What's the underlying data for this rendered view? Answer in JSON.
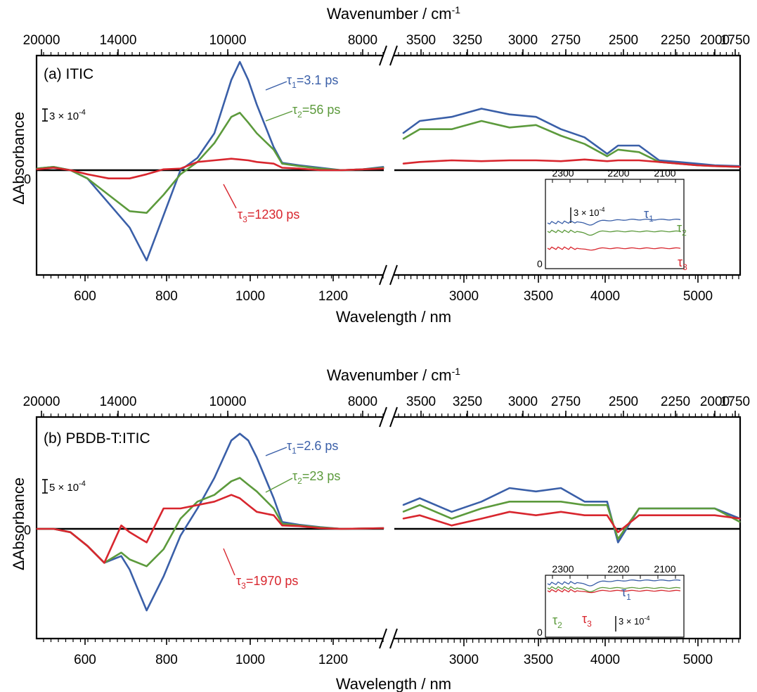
{
  "panels": [
    {
      "label": "(a) ITIC",
      "top_axis_label": "Wavenumber / cm",
      "top_axis_sup": "-1",
      "bottom_axis_label": "Wavelength / nm",
      "y_axis_label": "ΔAbsorbance",
      "zero_label": "0",
      "scale_bar": {
        "text": "3 × 10",
        "sup": "-4",
        "value": 0.0003
      },
      "top_ticks_left": [
        "20000",
        "14000",
        "10000",
        "8000"
      ],
      "top_ticks_right": [
        "3500",
        "3250",
        "3000",
        "2750",
        "2500",
        "2250",
        "2000",
        "1750"
      ],
      "bottom_ticks_left": [
        "600",
        "800",
        "1000",
        "1200"
      ],
      "bottom_ticks_right": [
        "3000",
        "3500",
        "4000",
        "5000"
      ],
      "taus": [
        {
          "sym": "τ",
          "sub": "1",
          "text": "=3.1 ps"
        },
        {
          "sym": "τ",
          "sub": "2",
          "text": "=56 ps"
        },
        {
          "sym": "τ",
          "sub": "3",
          "text": "=1230 ps"
        }
      ],
      "inset": {
        "ticks": [
          "2300",
          "2200",
          "2100"
        ],
        "zero": "0",
        "scale_text": "3 × 10",
        "scale_sup": "-4",
        "labels": [
          {
            "sym": "τ",
            "sub": "1"
          },
          {
            "sym": "τ",
            "sub": "2"
          },
          {
            "sym": "τ",
            "sub": "3"
          }
        ]
      }
    },
    {
      "label": "(b) PBDB-T:ITIC",
      "top_axis_label": "Wavenumber / cm",
      "top_axis_sup": "-1",
      "bottom_axis_label": "Wavelength / nm",
      "y_axis_label": "ΔAbsorbance",
      "zero_label": "0",
      "scale_bar": {
        "text": "5 × 10",
        "sup": "-4",
        "value": 0.0005
      },
      "top_ticks_left": [
        "20000",
        "14000",
        "10000",
        "8000"
      ],
      "top_ticks_right": [
        "3500",
        "3250",
        "3000",
        "2750",
        "2500",
        "2250",
        "2000",
        "1750"
      ],
      "bottom_ticks_left": [
        "600",
        "800",
        "1000",
        "1200"
      ],
      "bottom_ticks_right": [
        "3000",
        "3500",
        "4000",
        "5000"
      ],
      "taus": [
        {
          "sym": "τ",
          "sub": "1",
          "text": "=2.6 ps"
        },
        {
          "sym": "τ",
          "sub": "2",
          "text": "=23 ps"
        },
        {
          "sym": "τ",
          "sub": "3",
          "text": "=1970 ps"
        }
      ],
      "inset": {
        "ticks": [
          "2300",
          "2200",
          "2100"
        ],
        "zero": "0",
        "scale_text": "3 × 10",
        "scale_sup": "-4",
        "labels": [
          {
            "sym": "τ",
            "sub": "1"
          },
          {
            "sym": "τ",
            "sub": "2"
          },
          {
            "sym": "τ",
            "sub": "3"
          }
        ]
      }
    }
  ],
  "colors": {
    "tau1": "#3a5fa8",
    "tau2": "#5c9a3c",
    "tau3": "#d8262e"
  },
  "chart_data": [
    {
      "type": "line",
      "x_unit": "nm",
      "y_unit": "ΔAbsorbance",
      "series": [
        {
          "name": "τ₁=3.1 ps",
          "color": "#3a5fa8",
          "x": [
            480,
            520,
            560,
            600,
            650,
            700,
            740,
            780,
            820,
            860,
            900,
            940,
            960,
            980,
            1000,
            1040,
            1060,
            1100,
            1150,
            1200,
            1250,
            1300,
            2700,
            2800,
            3000,
            3200,
            3400,
            3600,
            3800,
            4000,
            4200,
            4300,
            4500,
            4700,
            4900,
            5100,
            5300,
            5600
          ],
          "y": [
            2e-05,
            4e-05,
            0.0,
            -0.0001,
            -0.0004,
            -0.0007,
            -0.0011,
            -0.00055,
            0.0,
            0.00015,
            0.00045,
            0.0011,
            0.00132,
            0.0011,
            0.0008,
            0.00028,
            9e-05,
            6e-05,
            3e-05,
            0.0,
            1e-05,
            4e-05,
            0.00045,
            0.0006,
            0.00065,
            0.00075,
            0.00068,
            0.00065,
            0.0005,
            0.0004,
            0.0002,
            0.0003,
            0.0003,
            0.00012,
            0.0001,
            8e-05,
            6e-05,
            5e-05
          ]
        },
        {
          "name": "τ₂=56 ps",
          "color": "#5c9a3c",
          "x": [
            480,
            520,
            560,
            600,
            650,
            700,
            740,
            780,
            820,
            860,
            900,
            940,
            960,
            980,
            1000,
            1040,
            1060,
            1100,
            1150,
            1200,
            1250,
            1300,
            2700,
            2800,
            3000,
            3200,
            3400,
            3600,
            3800,
            4000,
            4200,
            4300,
            4500,
            4700,
            4900,
            5100,
            5300,
            5600
          ],
          "y": [
            2e-05,
            4e-05,
            0.0,
            -0.0001,
            -0.0003,
            -0.0005,
            -0.00052,
            -0.0003,
            -5e-05,
            0.0001,
            0.00033,
            0.00065,
            0.0007,
            0.00058,
            0.00045,
            0.00025,
            8e-05,
            5e-05,
            2e-05,
            0.0,
            1e-05,
            3e-05,
            0.00038,
            0.0005,
            0.0005,
            0.0006,
            0.00052,
            0.00055,
            0.00042,
            0.00032,
            0.00017,
            0.00025,
            0.00022,
            0.0001,
            8e-05,
            6e-05,
            5e-05,
            4e-05
          ]
        },
        {
          "name": "τ₃=1230 ps",
          "color": "#d8262e",
          "x": [
            480,
            520,
            560,
            600,
            650,
            700,
            740,
            780,
            820,
            860,
            900,
            940,
            960,
            980,
            1000,
            1040,
            1060,
            1100,
            1150,
            1200,
            1250,
            1300,
            2700,
            2800,
            3000,
            3200,
            3400,
            3600,
            3800,
            4000,
            4200,
            4300,
            4500,
            4700,
            4900,
            5100,
            5300,
            5600
          ],
          "y": [
            1e-05,
            3e-05,
            0.0,
            -5e-05,
            -0.0001,
            -0.0001,
            -5e-05,
            1e-05,
            2e-05,
            0.0001,
            0.00012,
            0.00014,
            0.00013,
            0.00012,
            0.0001,
            8e-05,
            3e-05,
            2e-05,
            0.0,
            0.0,
            1e-05,
            2e-05,
            8e-05,
            0.0001,
            0.00012,
            0.00011,
            0.00012,
            0.00012,
            0.00011,
            0.00013,
            0.00011,
            0.00012,
            0.00012,
            0.0001,
            8e-05,
            6e-05,
            5e-05,
            4e-05
          ]
        }
      ]
    },
    {
      "type": "line",
      "x_unit": "nm",
      "y_unit": "ΔAbsorbance",
      "series": [
        {
          "name": "τ₁=2.6 ps",
          "color": "#3a5fa8",
          "x": [
            480,
            520,
            560,
            600,
            640,
            680,
            700,
            740,
            780,
            820,
            860,
            900,
            940,
            960,
            980,
            1000,
            1040,
            1060,
            1100,
            1150,
            1200,
            1250,
            1300,
            2700,
            2800,
            3000,
            3200,
            3400,
            3600,
            3800,
            4000,
            4200,
            4300,
            4500,
            4700,
            4900,
            5100,
            5300,
            5600
          ],
          "y": [
            0.0,
            0.0,
            -0.0001,
            -0.0005,
            -0.001,
            -0.0008,
            -0.0012,
            -0.0024,
            -0.0014,
            -0.0002,
            0.0006,
            0.0015,
            0.0026,
            0.0028,
            0.0026,
            0.0021,
            0.0009,
            0.0002,
            0.00012,
            5e-05,
            0.0,
            1e-05,
            2e-05,
            0.0007,
            0.0009,
            0.0005,
            0.0008,
            0.0012,
            0.0011,
            0.0012,
            0.0008,
            0.0008,
            -0.0004,
            0.0006,
            0.0006,
            0.0006,
            0.0006,
            0.0006,
            0.0003
          ]
        },
        {
          "name": "τ₂=23 ps",
          "color": "#5c9a3c",
          "x": [
            480,
            520,
            560,
            600,
            640,
            680,
            700,
            740,
            780,
            820,
            860,
            900,
            940,
            960,
            980,
            1000,
            1040,
            1060,
            1100,
            1150,
            1200,
            1250,
            1300,
            2700,
            2800,
            3000,
            3200,
            3400,
            3600,
            3800,
            4000,
            4200,
            4300,
            4500,
            4700,
            4900,
            5100,
            5300,
            5600
          ],
          "y": [
            0.0,
            0.0,
            -0.0001,
            -0.0005,
            -0.001,
            -0.0007,
            -0.0009,
            -0.0011,
            -0.0006,
            0.0003,
            0.0008,
            0.001,
            0.0014,
            0.0015,
            0.0013,
            0.0011,
            0.0006,
            0.00015,
            0.0001,
            4e-05,
            0.0,
            1e-05,
            2e-05,
            0.0005,
            0.0007,
            0.0003,
            0.0006,
            0.0008,
            0.0008,
            0.0008,
            0.0007,
            0.0007,
            -0.0003,
            0.0006,
            0.0006,
            0.0006,
            0.0006,
            0.0006,
            0.0002
          ]
        },
        {
          "name": "τ₃=1970 ps",
          "color": "#d8262e",
          "x": [
            480,
            520,
            560,
            600,
            640,
            680,
            700,
            740,
            780,
            820,
            860,
            900,
            940,
            960,
            980,
            1000,
            1040,
            1060,
            1100,
            1150,
            1200,
            1250,
            1300,
            2700,
            2800,
            3000,
            3200,
            3400,
            3600,
            3800,
            4000,
            4200,
            4300,
            4500,
            4700,
            4900,
            5100,
            5300,
            5600
          ],
          "y": [
            0.0,
            0.0,
            -0.0001,
            -0.0005,
            -0.001,
            0.0001,
            -0.0001,
            -0.0004,
            0.0006,
            0.0006,
            0.0007,
            0.0008,
            0.001,
            0.0009,
            0.0007,
            0.0005,
            0.0004,
            0.0001,
            8e-05,
            2e-05,
            0.0,
            1e-05,
            2e-05,
            0.0003,
            0.0004,
            0.0001,
            0.0003,
            0.0005,
            0.0004,
            0.0005,
            0.0004,
            0.0004,
            -0.0001,
            0.0004,
            0.0004,
            0.0004,
            0.0004,
            0.0004,
            0.0003
          ]
        }
      ]
    }
  ]
}
